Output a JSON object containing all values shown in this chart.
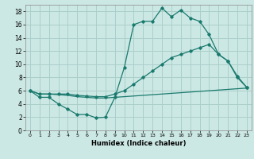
{
  "xlabel": "Humidex (Indice chaleur)",
  "bg_color": "#cce8e4",
  "grid_color": "#aacfca",
  "line_color": "#1a7a6e",
  "xlim": [
    -0.5,
    23.5
  ],
  "ylim": [
    0,
    19
  ],
  "xticks": [
    0,
    1,
    2,
    3,
    4,
    5,
    6,
    7,
    8,
    9,
    10,
    11,
    12,
    13,
    14,
    15,
    16,
    17,
    18,
    19,
    20,
    21,
    22,
    23
  ],
  "yticks": [
    0,
    2,
    4,
    6,
    8,
    10,
    12,
    14,
    16,
    18
  ],
  "line1_x": [
    0,
    1,
    2,
    3,
    4,
    5,
    6,
    7,
    8,
    9,
    10,
    11,
    12,
    13,
    14,
    15,
    16,
    17,
    18,
    19,
    20,
    21,
    22,
    23
  ],
  "line1_y": [
    6,
    5,
    5,
    4,
    3.2,
    2.4,
    2.4,
    1.9,
    2.0,
    5.0,
    9.5,
    16,
    16.5,
    16.5,
    18.5,
    17.2,
    18.2,
    17.0,
    16.5,
    14.5,
    11.5,
    10.5,
    8,
    6.5
  ],
  "line2_x": [
    0,
    1,
    2,
    3,
    4,
    5,
    6,
    7,
    8,
    9,
    10,
    11,
    12,
    13,
    14,
    15,
    16,
    17,
    18,
    19,
    20,
    21,
    22,
    23
  ],
  "line2_y": [
    6,
    5.5,
    5.5,
    5.5,
    5.5,
    5.3,
    5.2,
    5.1,
    5.1,
    5.5,
    6.0,
    7.0,
    8.0,
    9.0,
    10.0,
    11.0,
    11.5,
    12.0,
    12.5,
    13.0,
    11.5,
    10.5,
    8.2,
    6.5
  ],
  "line3_x": [
    0,
    1,
    2,
    3,
    4,
    5,
    6,
    7,
    8,
    9,
    10,
    11,
    12,
    13,
    14,
    15,
    16,
    17,
    18,
    19,
    20,
    21,
    22,
    23
  ],
  "line3_y": [
    6,
    5.5,
    5.5,
    5.4,
    5.3,
    5.1,
    5.0,
    4.9,
    4.9,
    5.0,
    5.1,
    5.2,
    5.3,
    5.4,
    5.5,
    5.6,
    5.7,
    5.8,
    5.9,
    6.0,
    6.1,
    6.2,
    6.3,
    6.4
  ]
}
